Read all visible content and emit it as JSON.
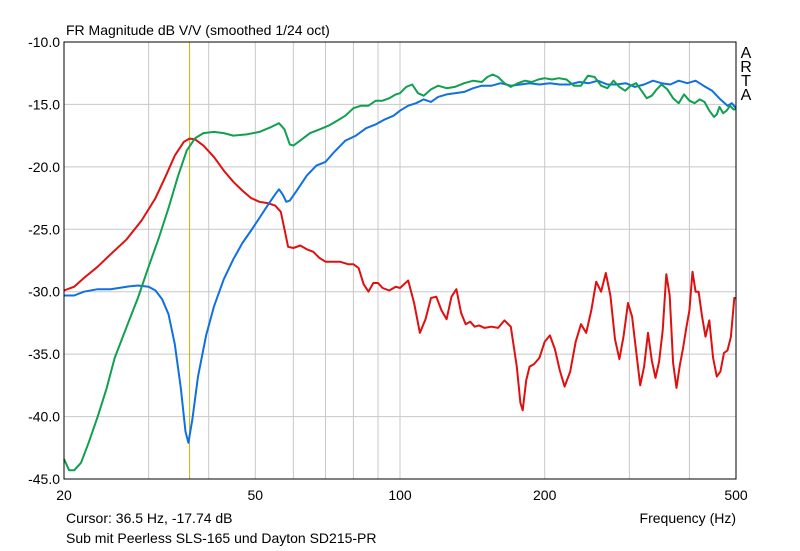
{
  "chart_data": {
    "type": "line",
    "title": "FR Magnitude dB V/V (smoothed 1/24 oct)",
    "watermark_letters": [
      "A",
      "R",
      "T",
      "A"
    ],
    "x_scale": "log",
    "xlim": [
      20,
      500
    ],
    "ylim": [
      -45,
      -10
    ],
    "grid": true,
    "xlabel": "Frequency (Hz)",
    "x_tick_labels": [
      {
        "value": 20,
        "label": "20"
      },
      {
        "value": 50,
        "label": "50"
      },
      {
        "value": 100,
        "label": "100"
      },
      {
        "value": 200,
        "label": "200"
      },
      {
        "value": 500,
        "label": "500"
      }
    ],
    "x_minor_ticks": [
      30,
      40,
      60,
      70,
      80,
      90,
      300,
      400
    ],
    "y_tick_labels": [
      {
        "value": -10,
        "label": "-10.0"
      },
      {
        "value": -15,
        "label": "-15.0"
      },
      {
        "value": -20,
        "label": "-20.0"
      },
      {
        "value": -25,
        "label": "-25.0"
      },
      {
        "value": -30,
        "label": "-30.0"
      },
      {
        "value": -35,
        "label": "-35.0"
      },
      {
        "value": -40,
        "label": "-40.0"
      },
      {
        "value": -45,
        "label": "-45.0"
      }
    ],
    "cursor": {
      "x": 36.5,
      "color": "#c8b400",
      "label": "Cursor: 36.5 Hz, -17.74 dB"
    },
    "footer_caption": "Sub mit Peerless SLS-165 und Dayton SD215-PR",
    "series": [
      {
        "color": "#e01010",
        "points": [
          [
            20,
            -29.9
          ],
          [
            21,
            -29.6
          ],
          [
            22,
            -28.9
          ],
          [
            23.5,
            -28
          ],
          [
            25,
            -27
          ],
          [
            27,
            -25.8
          ],
          [
            29,
            -24.3
          ],
          [
            31,
            -22.5
          ],
          [
            32.5,
            -20.8
          ],
          [
            34,
            -19.1
          ],
          [
            35.5,
            -18
          ],
          [
            36.5,
            -17.74
          ],
          [
            37.5,
            -17.8
          ],
          [
            39,
            -18.3
          ],
          [
            41,
            -19.2
          ],
          [
            43,
            -20.3
          ],
          [
            45,
            -21.2
          ],
          [
            47,
            -21.9
          ],
          [
            49,
            -22.5
          ],
          [
            51,
            -22.8
          ],
          [
            53,
            -22.9
          ],
          [
            55,
            -23.1
          ],
          [
            56.5,
            -23.6
          ],
          [
            57.5,
            -25
          ],
          [
            58.5,
            -26.4
          ],
          [
            60,
            -26.5
          ],
          [
            62,
            -26.3
          ],
          [
            64,
            -26.6
          ],
          [
            66,
            -26.8
          ],
          [
            68,
            -27.3
          ],
          [
            70,
            -27.6
          ],
          [
            72,
            -27.6
          ],
          [
            75,
            -27.6
          ],
          [
            78,
            -27.8
          ],
          [
            80,
            -27.8
          ],
          [
            82,
            -28.1
          ],
          [
            84,
            -29.4
          ],
          [
            86,
            -30
          ],
          [
            88,
            -29.3
          ],
          [
            90,
            -29.3
          ],
          [
            92,
            -29.7
          ],
          [
            95,
            -29.9
          ],
          [
            98,
            -29.6
          ],
          [
            100,
            -29.7
          ],
          [
            104,
            -29.1
          ],
          [
            107,
            -30.9
          ],
          [
            110,
            -33.3
          ],
          [
            113,
            -32.2
          ],
          [
            116,
            -30.5
          ],
          [
            119,
            -30.4
          ],
          [
            122,
            -31.5
          ],
          [
            125,
            -32.2
          ],
          [
            128,
            -30.4
          ],
          [
            131,
            -29.8
          ],
          [
            134,
            -31.7
          ],
          [
            137,
            -32.6
          ],
          [
            140,
            -32.4
          ],
          [
            143,
            -32.8
          ],
          [
            146,
            -32.7
          ],
          [
            150,
            -32.9
          ],
          [
            155,
            -32.8
          ],
          [
            160,
            -32.9
          ],
          [
            165,
            -32.3
          ],
          [
            170,
            -32.8
          ],
          [
            175,
            -36
          ],
          [
            178,
            -38.9
          ],
          [
            180,
            -39.5
          ],
          [
            183,
            -37.1
          ],
          [
            186,
            -36
          ],
          [
            190,
            -35.8
          ],
          [
            195,
            -35.3
          ],
          [
            200,
            -34
          ],
          [
            205,
            -33.5
          ],
          [
            210,
            -34.6
          ],
          [
            215,
            -36.3
          ],
          [
            220,
            -37.6
          ],
          [
            226,
            -36.4
          ],
          [
            232,
            -34
          ],
          [
            238,
            -32.6
          ],
          [
            244,
            -33.3
          ],
          [
            250,
            -31.5
          ],
          [
            256,
            -29.2
          ],
          [
            262,
            -30
          ],
          [
            268,
            -28.5
          ],
          [
            274,
            -30.3
          ],
          [
            280,
            -33.8
          ],
          [
            286,
            -35.4
          ],
          [
            292,
            -33.5
          ],
          [
            298,
            -30.9
          ],
          [
            304,
            -32
          ],
          [
            310,
            -34.8
          ],
          [
            316,
            -37.5
          ],
          [
            322,
            -36
          ],
          [
            328,
            -33.3
          ],
          [
            334,
            -35.5
          ],
          [
            340,
            -36.9
          ],
          [
            346,
            -35.6
          ],
          [
            352,
            -33.1
          ],
          [
            358,
            -28.6
          ],
          [
            364,
            -30.3
          ],
          [
            370,
            -35.7
          ],
          [
            376,
            -37.7
          ],
          [
            382,
            -35.9
          ],
          [
            388,
            -34.5
          ],
          [
            394,
            -32.9
          ],
          [
            400,
            -31.5
          ],
          [
            406,
            -28.4
          ],
          [
            412,
            -30
          ],
          [
            418,
            -30
          ],
          [
            425,
            -32
          ],
          [
            432,
            -33.6
          ],
          [
            440,
            -32.3
          ],
          [
            448,
            -35.3
          ],
          [
            456,
            -36.8
          ],
          [
            464,
            -36.4
          ],
          [
            472,
            -34.9
          ],
          [
            480,
            -34.7
          ],
          [
            488,
            -33.6
          ],
          [
            496,
            -30.5
          ],
          [
            500,
            -30.5
          ]
        ]
      },
      {
        "color": "#1070e0",
        "points": [
          [
            20,
            -30.3
          ],
          [
            21,
            -30.3
          ],
          [
            22,
            -30
          ],
          [
            23.5,
            -29.8
          ],
          [
            25,
            -29.8
          ],
          [
            27,
            -29.6
          ],
          [
            28.5,
            -29.5
          ],
          [
            30,
            -29.6
          ],
          [
            31,
            -29.9
          ],
          [
            32,
            -30.6
          ],
          [
            33,
            -31.8
          ],
          [
            34,
            -34.2
          ],
          [
            35,
            -37.7
          ],
          [
            35.8,
            -41.2
          ],
          [
            36.3,
            -42.1
          ],
          [
            37,
            -40.2
          ],
          [
            38,
            -36.8
          ],
          [
            39.5,
            -33.5
          ],
          [
            41,
            -31.2
          ],
          [
            43,
            -29
          ],
          [
            45,
            -27.4
          ],
          [
            47,
            -26.1
          ],
          [
            49,
            -25.1
          ],
          [
            51,
            -24.1
          ],
          [
            53,
            -23.1
          ],
          [
            55,
            -22.2
          ],
          [
            56,
            -21.8
          ],
          [
            57,
            -22.2
          ],
          [
            58,
            -22.8
          ],
          [
            59,
            -22.7
          ],
          [
            61,
            -21.9
          ],
          [
            64,
            -20.7
          ],
          [
            67,
            -19.9
          ],
          [
            70,
            -19.6
          ],
          [
            73,
            -18.8
          ],
          [
            77,
            -17.9
          ],
          [
            81,
            -17.5
          ],
          [
            85,
            -16.9
          ],
          [
            89,
            -16.6
          ],
          [
            93,
            -16.2
          ],
          [
            97,
            -15.9
          ],
          [
            100,
            -15.5
          ],
          [
            104,
            -15.1
          ],
          [
            108,
            -14.9
          ],
          [
            112,
            -14.6
          ],
          [
            116,
            -14.8
          ],
          [
            120,
            -14.4
          ],
          [
            125,
            -14.2
          ],
          [
            130,
            -14.1
          ],
          [
            136,
            -14
          ],
          [
            142,
            -13.7
          ],
          [
            148,
            -13.5
          ],
          [
            155,
            -13.5
          ],
          [
            162,
            -13.3
          ],
          [
            170,
            -13.5
          ],
          [
            178,
            -13.4
          ],
          [
            186,
            -13.3
          ],
          [
            195,
            -13.4
          ],
          [
            205,
            -13.3
          ],
          [
            215,
            -13.4
          ],
          [
            225,
            -13.4
          ],
          [
            236,
            -13.2
          ],
          [
            247,
            -13.3
          ],
          [
            258,
            -13.1
          ],
          [
            270,
            -13.4
          ],
          [
            282,
            -13.4
          ],
          [
            295,
            -13.3
          ],
          [
            308,
            -13.6
          ],
          [
            322,
            -13.4
          ],
          [
            336,
            -13.1
          ],
          [
            350,
            -13.3
          ],
          [
            365,
            -13.4
          ],
          [
            380,
            -13.1
          ],
          [
            396,
            -13.3
          ],
          [
            412,
            -13.1
          ],
          [
            428,
            -13.5
          ],
          [
            446,
            -13.9
          ],
          [
            464,
            -14.6
          ],
          [
            480,
            -15.1
          ],
          [
            490,
            -14.9
          ],
          [
            500,
            -15.3
          ]
        ]
      },
      {
        "color": "#10a050",
        "points": [
          [
            20,
            -43.4
          ],
          [
            20.5,
            -44.3
          ],
          [
            21,
            -44.3
          ],
          [
            21.7,
            -43.7
          ],
          [
            22.5,
            -42.1
          ],
          [
            23.5,
            -40
          ],
          [
            24.5,
            -37.8
          ],
          [
            25.5,
            -35.3
          ],
          [
            27,
            -32.8
          ],
          [
            28.5,
            -30.5
          ],
          [
            30,
            -28
          ],
          [
            31.5,
            -25.7
          ],
          [
            33,
            -23.3
          ],
          [
            34.5,
            -20.8
          ],
          [
            36,
            -18.7
          ],
          [
            37.5,
            -17.7
          ],
          [
            39,
            -17.3
          ],
          [
            41,
            -17.2
          ],
          [
            43,
            -17.3
          ],
          [
            45,
            -17.5
          ],
          [
            48,
            -17.4
          ],
          [
            51,
            -17.2
          ],
          [
            54,
            -16.8
          ],
          [
            56,
            -16.5
          ],
          [
            57.5,
            -17
          ],
          [
            59,
            -18.2
          ],
          [
            60,
            -18.3
          ],
          [
            62,
            -17.9
          ],
          [
            65,
            -17.3
          ],
          [
            68,
            -17
          ],
          [
            71,
            -16.7
          ],
          [
            74,
            -16.3
          ],
          [
            77,
            -15.9
          ],
          [
            80,
            -15.3
          ],
          [
            83,
            -15.1
          ],
          [
            86,
            -15.1
          ],
          [
            89,
            -14.7
          ],
          [
            92,
            -14.7
          ],
          [
            95,
            -14.5
          ],
          [
            98,
            -14.2
          ],
          [
            100,
            -14.1
          ],
          [
            103,
            -13.6
          ],
          [
            106,
            -13.4
          ],
          [
            109,
            -14.1
          ],
          [
            112,
            -14.3
          ],
          [
            116,
            -13.8
          ],
          [
            120,
            -13.5
          ],
          [
            125,
            -13.7
          ],
          [
            130,
            -13.6
          ],
          [
            136,
            -13.3
          ],
          [
            142,
            -13.1
          ],
          [
            148,
            -13.2
          ],
          [
            152,
            -12.8
          ],
          [
            156,
            -12.6
          ],
          [
            160,
            -12.8
          ],
          [
            165,
            -13.3
          ],
          [
            170,
            -13.6
          ],
          [
            176,
            -13.3
          ],
          [
            182,
            -13.1
          ],
          [
            188,
            -13.2
          ],
          [
            194,
            -13
          ],
          [
            200,
            -12.9
          ],
          [
            207,
            -13
          ],
          [
            214,
            -12.9
          ],
          [
            222,
            -13
          ],
          [
            230,
            -13.5
          ],
          [
            238,
            -13.5
          ],
          [
            246,
            -12.7
          ],
          [
            254,
            -12.8
          ],
          [
            262,
            -13.5
          ],
          [
            270,
            -13.7
          ],
          [
            278,
            -13.1
          ],
          [
            286,
            -13.6
          ],
          [
            294,
            -13.9
          ],
          [
            302,
            -13.5
          ],
          [
            310,
            -13.3
          ],
          [
            318,
            -13.9
          ],
          [
            326,
            -14.5
          ],
          [
            334,
            -14.3
          ],
          [
            342,
            -13.8
          ],
          [
            350,
            -13.4
          ],
          [
            360,
            -13.8
          ],
          [
            370,
            -14.5
          ],
          [
            380,
            -14.9
          ],
          [
            390,
            -14.2
          ],
          [
            400,
            -14.7
          ],
          [
            410,
            -14.9
          ],
          [
            420,
            -14.6
          ],
          [
            430,
            -14.8
          ],
          [
            440,
            -15.5
          ],
          [
            450,
            -16
          ],
          [
            456,
            -15.8
          ],
          [
            462,
            -15.2
          ],
          [
            470,
            -15.7
          ],
          [
            478,
            -15.5
          ],
          [
            486,
            -15.1
          ],
          [
            494,
            -15.4
          ],
          [
            500,
            -15.4
          ]
        ]
      }
    ]
  }
}
